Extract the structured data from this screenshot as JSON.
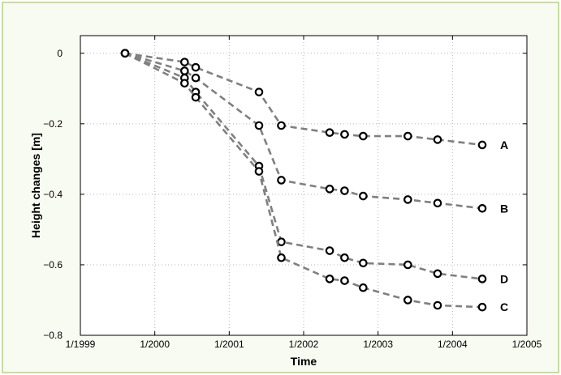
{
  "chart_data": {
    "type": "line",
    "title": "",
    "xlabel": "Time",
    "ylabel": "Height changes [m]",
    "x_ticks": [
      "1/1999",
      "1/2000",
      "1/2001",
      "1/2002",
      "1/2003",
      "1/2004",
      "1/2005"
    ],
    "y_ticks": [
      "0",
      "-0.2",
      "-0.4",
      "-0.6",
      "-0.8"
    ],
    "xlim": [
      1999.0,
      2005.0
    ],
    "ylim": [
      -0.8,
      0.05
    ],
    "grid": true,
    "line_style": "dashed",
    "line_color": "#808080",
    "marker": "open-circle",
    "series": [
      {
        "name": "A",
        "x": [
          1999.6,
          2000.4,
          2000.55,
          2001.4,
          2001.7,
          2002.35,
          2002.55,
          2002.8,
          2003.4,
          2003.8,
          2004.4
        ],
        "y": [
          0.0,
          -0.025,
          -0.04,
          -0.11,
          -0.205,
          -0.225,
          -0.23,
          -0.235,
          -0.235,
          -0.245,
          -0.26
        ]
      },
      {
        "name": "B",
        "x": [
          1999.6,
          2000.4,
          2000.55,
          2001.4,
          2001.7,
          2002.35,
          2002.55,
          2002.8,
          2003.4,
          2003.8,
          2004.4
        ],
        "y": [
          0.0,
          -0.05,
          -0.07,
          -0.205,
          -0.36,
          -0.385,
          -0.39,
          -0.405,
          -0.415,
          -0.425,
          -0.44
        ]
      },
      {
        "name": "D",
        "x": [
          1999.6,
          2000.4,
          2000.55,
          2001.4,
          2001.7,
          2002.35,
          2002.55,
          2002.8,
          2003.4,
          2003.8,
          2004.4
        ],
        "y": [
          0.0,
          -0.07,
          -0.11,
          -0.32,
          -0.535,
          -0.56,
          -0.58,
          -0.595,
          -0.6,
          -0.625,
          -0.64
        ]
      },
      {
        "name": "C",
        "x": [
          1999.6,
          2000.4,
          2000.55,
          2001.4,
          2001.7,
          2002.35,
          2002.55,
          2002.8,
          2003.4,
          2003.8,
          2004.4
        ],
        "y": [
          0.0,
          -0.085,
          -0.125,
          -0.335,
          -0.58,
          -0.64,
          -0.645,
          -0.665,
          -0.7,
          -0.715,
          -0.72
        ]
      }
    ]
  }
}
